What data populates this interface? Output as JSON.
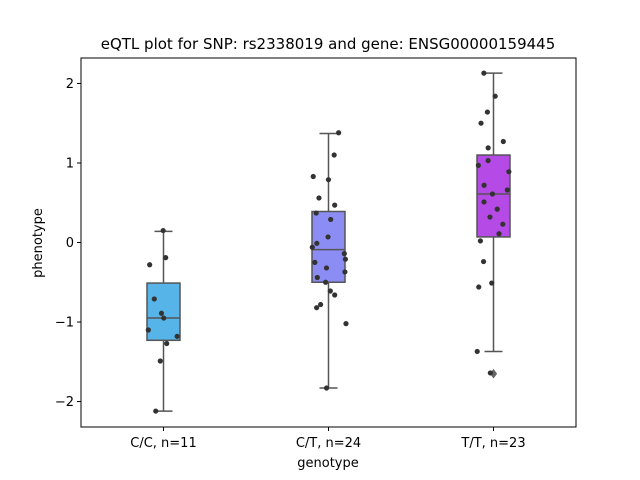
{
  "chart_data": {
    "type": "box",
    "title": "eQTL plot for SNP: rs2338019 and gene: ENSG00000159445",
    "xlabel": "genotype",
    "ylabel": "phenotype",
    "categories": [
      "C/C, n=11",
      "C/T, n=24",
      "T/T, n=23"
    ],
    "ylim": [
      -2.32,
      2.32
    ],
    "yticks": [
      -2,
      -1,
      0,
      1,
      2
    ],
    "ytick_labels": [
      "−2",
      "−1",
      "0",
      "1",
      "2"
    ],
    "colors": {
      "box_fill": [
        "#56b4e9",
        "#8c8cf5",
        "#b54ae6"
      ],
      "box_edge": "#555555",
      "points": "#333333"
    },
    "boxes": [
      {
        "category": "C/C, n=11",
        "q1": -1.23,
        "median": -0.95,
        "q3": -0.51,
        "whisker_low": -2.12,
        "whisker_high": 0.14,
        "outliers": [],
        "points": [
          0.15,
          -0.19,
          -0.28,
          -0.71,
          -0.89,
          -0.95,
          -1.1,
          -1.18,
          -1.27,
          -1.49,
          -2.12
        ]
      },
      {
        "category": "C/T, n=24",
        "q1": -0.5,
        "median": -0.09,
        "q3": 0.39,
        "whisker_low": -1.83,
        "whisker_high": 1.37,
        "outliers": [],
        "points": [
          1.38,
          1.1,
          0.83,
          0.79,
          0.56,
          0.47,
          0.37,
          0.29,
          0.07,
          -0.01,
          -0.06,
          -0.14,
          -0.21,
          -0.25,
          -0.32,
          -0.37,
          -0.44,
          -0.5,
          -0.61,
          -0.66,
          -0.78,
          -0.82,
          -1.02,
          -1.83
        ]
      },
      {
        "category": "T/T, n=23",
        "q1": 0.07,
        "median": 0.61,
        "q3": 1.1,
        "whisker_low": -1.37,
        "whisker_high": 2.13,
        "outliers": [
          -1.65
        ],
        "points": [
          2.13,
          1.84,
          1.64,
          1.5,
          1.27,
          1.19,
          1.03,
          0.97,
          0.89,
          0.72,
          0.66,
          0.61,
          0.51,
          0.42,
          0.32,
          0.23,
          0.11,
          0.02,
          -0.24,
          -0.51,
          -0.56,
          -1.37,
          -1.64
        ]
      }
    ]
  }
}
